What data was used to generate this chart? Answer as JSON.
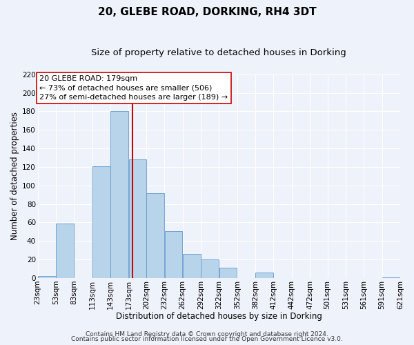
{
  "title": "20, GLEBE ROAD, DORKING, RH4 3DT",
  "subtitle": "Size of property relative to detached houses in Dorking",
  "xlabel": "Distribution of detached houses by size in Dorking",
  "ylabel": "Number of detached properties",
  "bar_left_edges": [
    23,
    53,
    83,
    113,
    143,
    173,
    202,
    232,
    262,
    292,
    322,
    352,
    382,
    412,
    442,
    472,
    501,
    531,
    561,
    591
  ],
  "bar_widths": [
    30,
    30,
    30,
    30,
    30,
    29,
    30,
    30,
    30,
    30,
    30,
    30,
    30,
    30,
    30,
    29,
    30,
    30,
    30,
    30
  ],
  "bar_heights": [
    2,
    59,
    0,
    121,
    180,
    128,
    92,
    51,
    26,
    20,
    11,
    0,
    6,
    0,
    0,
    0,
    0,
    0,
    0,
    1
  ],
  "bar_color": "#b8d4ea",
  "bar_edgecolor": "#6699cc",
  "vline_x": 179,
  "vline_color": "#cc0000",
  "ylim": [
    0,
    220
  ],
  "yticks": [
    0,
    20,
    40,
    60,
    80,
    100,
    120,
    140,
    160,
    180,
    200,
    220
  ],
  "xtick_labels": [
    "23sqm",
    "53sqm",
    "83sqm",
    "113sqm",
    "143sqm",
    "173sqm",
    "202sqm",
    "232sqm",
    "262sqm",
    "292sqm",
    "322sqm",
    "352sqm",
    "382sqm",
    "412sqm",
    "442sqm",
    "472sqm",
    "501sqm",
    "531sqm",
    "561sqm",
    "591sqm",
    "621sqm"
  ],
  "annotation_line1": "20 GLEBE ROAD: 179sqm",
  "annotation_line2": "← 73% of detached houses are smaller (506)",
  "annotation_line3": "27% of semi-detached houses are larger (189) →",
  "footer_line1": "Contains HM Land Registry data © Crown copyright and database right 2024.",
  "footer_line2": "Contains public sector information licensed under the Open Government Licence v3.0.",
  "background_color": "#eef2fa",
  "grid_color": "#ffffff",
  "title_fontsize": 11,
  "subtitle_fontsize": 9.5,
  "axis_label_fontsize": 8.5,
  "tick_fontsize": 7.5,
  "annotation_fontsize": 8,
  "footer_fontsize": 6.5
}
